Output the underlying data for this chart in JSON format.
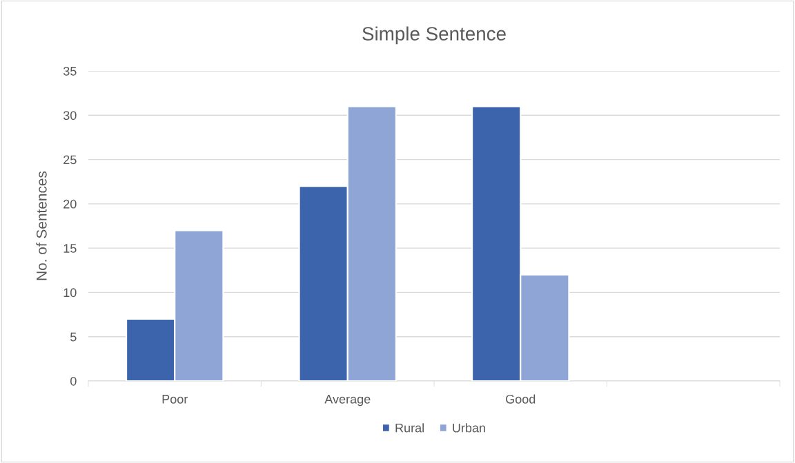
{
  "chart_data": {
    "type": "bar",
    "title": "Simple Sentence",
    "ylabel": "No. of Sentences",
    "categories": [
      "Poor",
      "Average",
      "Good",
      null
    ],
    "series": [
      {
        "name": "Rural",
        "color": "#3c64ac",
        "values": [
          7,
          22,
          31,
          null
        ]
      },
      {
        "name": "Urban",
        "color": "#8fa5d6",
        "values": [
          17,
          31,
          12,
          null
        ]
      }
    ],
    "ylim": [
      0,
      35
    ],
    "yticks": [
      0,
      5,
      10,
      15,
      20,
      25,
      30,
      35
    ],
    "grid": "y",
    "legend": "bottom"
  }
}
